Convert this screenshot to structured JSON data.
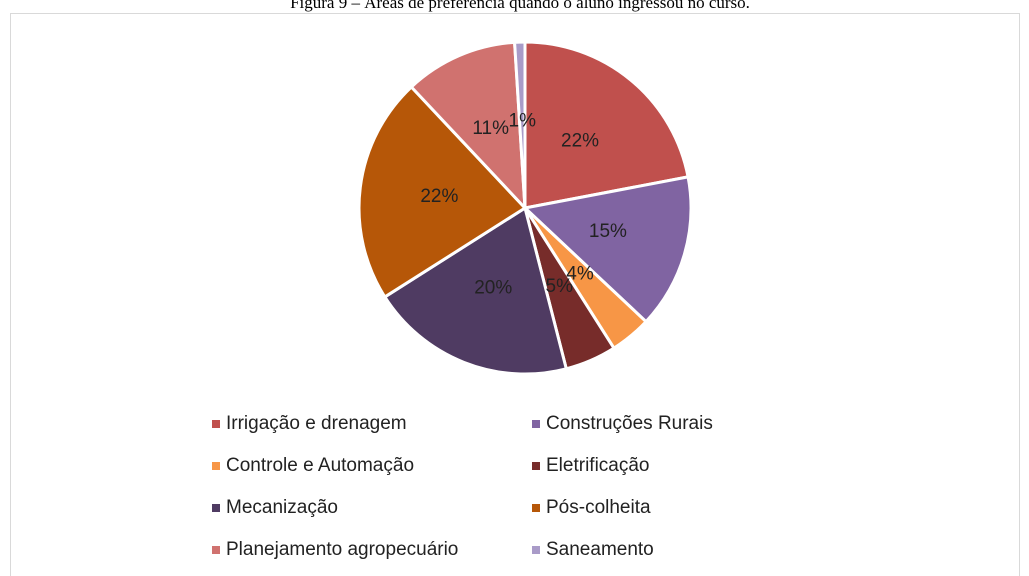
{
  "chart_data": {
    "type": "pie",
    "title": "Figura 9 – Áreas de preferência quando o aluno ingressou no curso.",
    "categories": [
      "Irrigação e drenagem",
      "Construções Rurais",
      "Controle e Automação",
      "Eletrificação",
      "Mecanização",
      "Pós-colheita",
      "Planejamento agropecuário",
      "Saneamento"
    ],
    "values": [
      22,
      15,
      4,
      5,
      20,
      22,
      11,
      1
    ],
    "value_labels": [
      "22%",
      "15%",
      "4%",
      "5%",
      "20%",
      "22%",
      "11%",
      "1%"
    ],
    "colors": [
      "#c0504d",
      "#8064a2",
      "#f79646",
      "#772c2a",
      "#4f3b62",
      "#b65708",
      "#d0726f",
      "#a99bc8"
    ],
    "legend": "bottom"
  }
}
